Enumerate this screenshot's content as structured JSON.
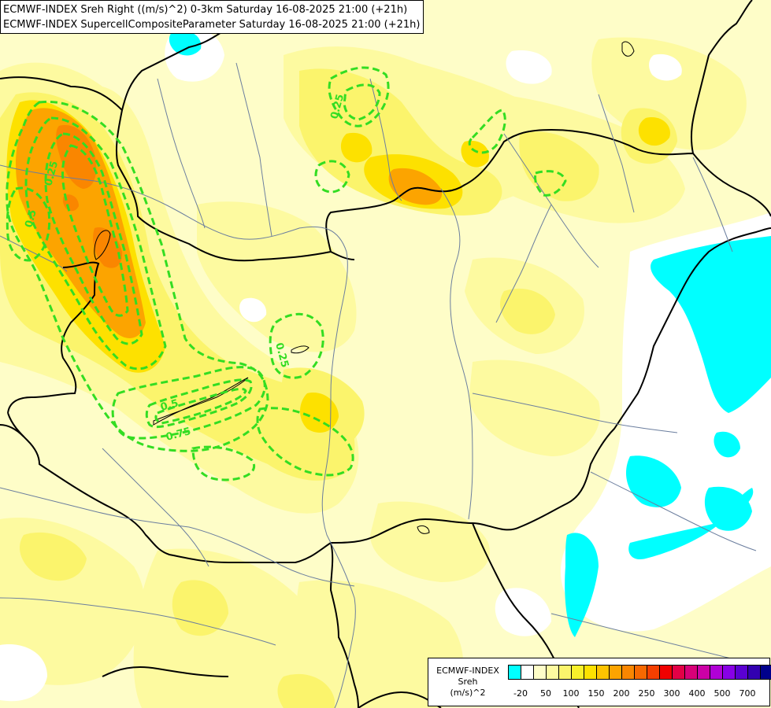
{
  "title": {
    "line1": "ECMWF-INDEX Sreh Right ((m/s)^2) 0-3km Saturday 16-08-2025 21:00 (+21h)",
    "line2": "ECMWF-INDEX SupercellCompositeParameter Saturday 16-08-2025 21:00 (+21h)"
  },
  "contour_labels": [
    "0.25",
    "0.25",
    "0.5",
    "0.25",
    "0.5",
    "0.75"
  ],
  "legend": {
    "title_lines": [
      "ECMWF-INDEX",
      "Sreh",
      "(m/s)^2"
    ],
    "colors": [
      "#00ffff",
      "#ffffff",
      "#fefdc8",
      "#fdfaa0",
      "#fbf46c",
      "#f8f02a",
      "#fde100",
      "#fdc300",
      "#fca400",
      "#fa8600",
      "#f76800",
      "#f43f00",
      "#f00000",
      "#e30046",
      "#d80078",
      "#cc00a6",
      "#b000d6",
      "#8800e6",
      "#5a00d2",
      "#3200b0",
      "#00008c"
    ],
    "labels": [
      "-20",
      "50",
      "100",
      "150",
      "200",
      "250",
      "300",
      "400",
      "500",
      "700"
    ]
  },
  "map_layers": {
    "background": "#fefdc8",
    "light_yellow": "#fdfaa0",
    "yellow": "#fbf46c",
    "gold": "#fde100",
    "orange": "#fca400",
    "dark_orange": "#fa8600",
    "cyan": "#00ffff",
    "white": "#ffffff",
    "border_color": "#000000",
    "river_color": "#6b7e9e",
    "contour_color": "#33dd22"
  }
}
